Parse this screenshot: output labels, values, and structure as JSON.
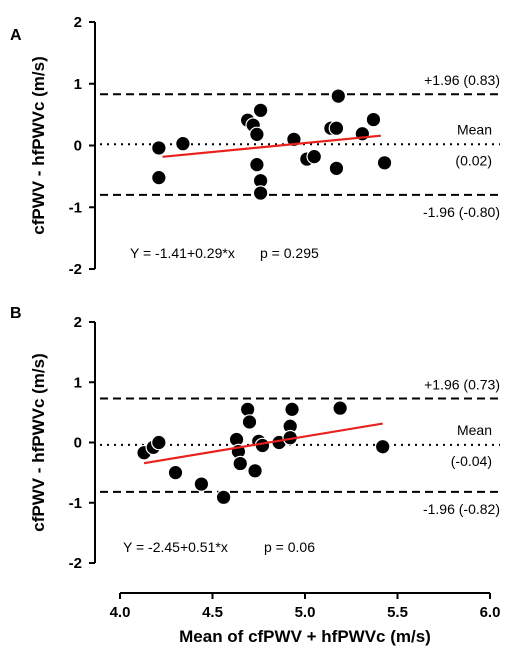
{
  "chart_data": [
    {
      "panel": "A",
      "type": "scatter",
      "ylabel": "cfPWV - hfPWVc (m/s)",
      "ylim": [
        -2,
        2
      ],
      "yticks": [
        "2",
        "1",
        "0",
        "-1",
        "-2"
      ],
      "xlim": [
        4.0,
        6.0
      ],
      "points": [
        {
          "x": 4.21,
          "y": -0.04
        },
        {
          "x": 4.21,
          "y": -0.52
        },
        {
          "x": 4.34,
          "y": 0.03
        },
        {
          "x": 4.69,
          "y": 0.41
        },
        {
          "x": 4.72,
          "y": 0.33
        },
        {
          "x": 4.74,
          "y": 0.18
        },
        {
          "x": 4.76,
          "y": 0.57
        },
        {
          "x": 4.74,
          "y": -0.31
        },
        {
          "x": 4.76,
          "y": -0.57
        },
        {
          "x": 4.76,
          "y": -0.77
        },
        {
          "x": 4.94,
          "y": 0.1
        },
        {
          "x": 5.01,
          "y": -0.22
        },
        {
          "x": 5.05,
          "y": -0.18
        },
        {
          "x": 5.14,
          "y": 0.28
        },
        {
          "x": 5.17,
          "y": 0.28
        },
        {
          "x": 5.17,
          "y": -0.37
        },
        {
          "x": 5.18,
          "y": 0.8
        },
        {
          "x": 5.31,
          "y": 0.19
        },
        {
          "x": 5.37,
          "y": 0.42
        },
        {
          "x": 5.43,
          "y": -0.28
        }
      ],
      "regression": {
        "x0": 4.23,
        "x1": 5.41,
        "intercept": -1.41,
        "slope": 0.29,
        "color": "#e8211c",
        "label": "Y = -1.41+0.29*x",
        "p_label": "p = 0.295"
      },
      "limits": {
        "upper": {
          "value": 0.83,
          "label": "+1.96 (0.83)"
        },
        "mean": {
          "value": 0.02,
          "label": "Mean",
          "value_label": "(0.02)"
        },
        "lower": {
          "value": -0.8,
          "label": "-1.96 (-0.80)"
        }
      }
    },
    {
      "panel": "B",
      "type": "scatter",
      "ylabel": "cfPWV - hfPWVc (m/s)",
      "xlabel": "Mean of cfPWV + hfPWVc (m/s)",
      "ylim": [
        -2,
        2
      ],
      "yticks": [
        "2",
        "1",
        "0",
        "-1",
        "-2"
      ],
      "xlim": [
        4.0,
        6.0
      ],
      "xticks": [
        "4.0",
        "4.5",
        "5.0",
        "5.5",
        "6.0"
      ],
      "points": [
        {
          "x": 4.13,
          "y": -0.17
        },
        {
          "x": 4.18,
          "y": -0.08
        },
        {
          "x": 4.21,
          "y": 0.0
        },
        {
          "x": 4.3,
          "y": -0.5
        },
        {
          "x": 4.44,
          "y": -0.69
        },
        {
          "x": 4.56,
          "y": -0.91
        },
        {
          "x": 4.63,
          "y": 0.05
        },
        {
          "x": 4.64,
          "y": -0.15
        },
        {
          "x": 4.65,
          "y": -0.35
        },
        {
          "x": 4.69,
          "y": 0.55
        },
        {
          "x": 4.7,
          "y": 0.34
        },
        {
          "x": 4.73,
          "y": -0.47
        },
        {
          "x": 4.75,
          "y": 0.02
        },
        {
          "x": 4.77,
          "y": -0.05
        },
        {
          "x": 4.86,
          "y": 0.0
        },
        {
          "x": 4.92,
          "y": 0.27
        },
        {
          "x": 4.92,
          "y": 0.08
        },
        {
          "x": 4.93,
          "y": 0.55
        },
        {
          "x": 5.19,
          "y": 0.57
        },
        {
          "x": 5.42,
          "y": -0.07
        }
      ],
      "regression": {
        "x0": 4.13,
        "x1": 5.42,
        "intercept": -2.45,
        "slope": 0.51,
        "color": "#e8211c",
        "label": "Y = -2.45+0.51*x",
        "p_label": "p = 0.06"
      },
      "limits": {
        "upper": {
          "value": 0.73,
          "label": "+1.96 (0.73)"
        },
        "mean": {
          "value": -0.04,
          "label": "Mean",
          "value_label": "(-0.04)"
        },
        "lower": {
          "value": -0.82,
          "label": "-1.96 (-0.82)"
        }
      }
    }
  ]
}
